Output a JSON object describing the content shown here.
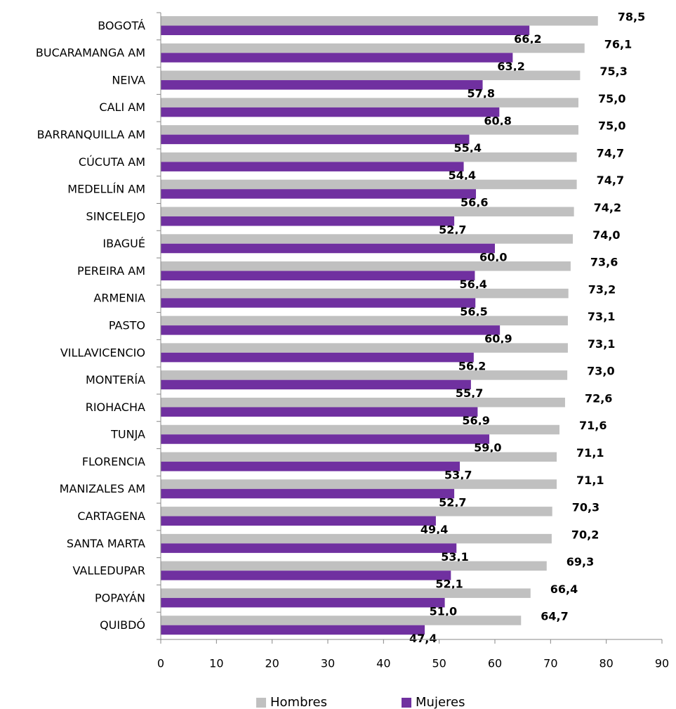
{
  "chart_data": {
    "type": "bar",
    "orientation": "horizontal",
    "categories": [
      "BOGOTÁ",
      "BUCARAMANGA AM",
      "NEIVA",
      "CALI AM",
      "BARRANQUILLA AM",
      "CÚCUTA AM",
      "MEDELLÍN AM",
      "SINCELEJO",
      "IBAGUÉ",
      "PEREIRA AM",
      "ARMENIA",
      "PASTO",
      "VILLAVICENCIO",
      "MONTERÍA",
      "RIOHACHA",
      "TUNJA",
      "FLORENCIA",
      "MANIZALES AM",
      "CARTAGENA",
      "SANTA MARTA",
      "VALLEDUPAR",
      "POPAYÁN",
      "QUIBDÓ"
    ],
    "series": [
      {
        "name": "Hombres",
        "color": "#c0c0c0",
        "values": [
          78.5,
          76.1,
          75.3,
          75.0,
          75.0,
          74.7,
          74.7,
          74.2,
          74.0,
          73.6,
          73.2,
          73.1,
          73.1,
          73.0,
          72.6,
          71.6,
          71.1,
          71.1,
          70.3,
          70.2,
          69.3,
          66.4,
          64.7
        ],
        "value_labels": [
          "78,5",
          "76,1",
          "75,3",
          "75,0",
          "75,0",
          "74,7",
          "74,7",
          "74,2",
          "74,0",
          "73,6",
          "73,2",
          "73,1",
          "73,1",
          "73,0",
          "72,6",
          "71,6",
          "71,1",
          "71,1",
          "70,3",
          "70,2",
          "69,3",
          "66,4",
          "64,7"
        ]
      },
      {
        "name": "Mujeres",
        "color": "#7030a0",
        "values": [
          66.2,
          63.2,
          57.8,
          60.8,
          55.4,
          54.4,
          56.6,
          52.7,
          60.0,
          56.4,
          56.5,
          60.9,
          56.2,
          55.7,
          56.9,
          59.0,
          53.7,
          52.7,
          49.4,
          53.1,
          52.1,
          51.0,
          47.4
        ],
        "value_labels": [
          "66,2",
          "63,2",
          "57,8",
          "60,8",
          "55,4",
          "54,4",
          "56,6",
          "52,7",
          "60,0",
          "56,4",
          "56,5",
          "60,9",
          "56,2",
          "55,7",
          "56,9",
          "59,0",
          "53,7",
          "52,7",
          "49,4",
          "53,1",
          "52,1",
          "51,0",
          "47,4"
        ]
      }
    ],
    "xlim": [
      0,
      90
    ],
    "xticks": [
      0,
      10,
      20,
      30,
      40,
      50,
      60,
      70,
      80,
      90
    ],
    "legend": "bottom"
  }
}
